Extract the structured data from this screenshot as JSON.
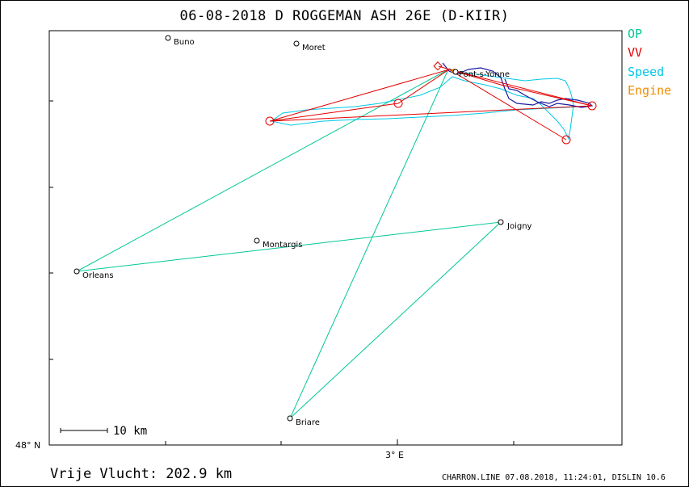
{
  "title": "06-08-2018   D ROGGEMAN   ASH 26E (D-KIIR)",
  "legend": [
    {
      "label": "OP",
      "color": "#00c896"
    },
    {
      "label": "VV",
      "color": "#e60000"
    },
    {
      "label": "Speed",
      "color": "#00c8e6"
    },
    {
      "label": "Engine",
      "color": "#f08c00"
    }
  ],
  "axes": {
    "x_label": "3° E",
    "y_label": "48° N"
  },
  "scale_bar": {
    "label": "10  km"
  },
  "footer": {
    "distance": "Vrije Vlucht:  202.9 km",
    "meta": "CHARRON.LINE 07.08.2018, 11:24:01, DISLIN 10.6"
  },
  "colors": {
    "op": "#00c896",
    "vv": "#e60000",
    "speed": "#00c8e6",
    "engine": "#f08c00",
    "track": "#1a1aa0",
    "frame": "#000000"
  },
  "towns": [
    "Buno",
    "Moret",
    "Pont-s-Yonne",
    "Montargis",
    "Joigny",
    "Orleans",
    "Briare"
  ]
}
